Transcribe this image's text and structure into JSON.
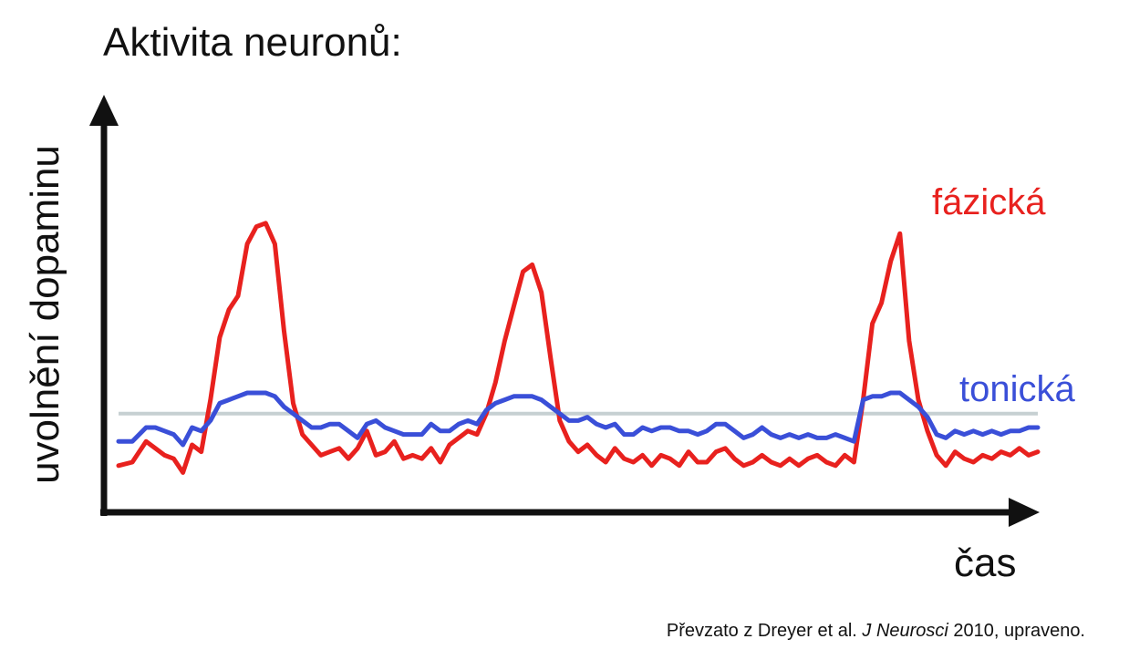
{
  "chart_data": {
    "type": "line",
    "title": "Aktivita neuronů:",
    "xlabel": "čas",
    "ylabel": "uvolnění dopaminu",
    "xlim": [
      0,
      100
    ],
    "ylim": [
      0,
      100
    ],
    "grid": false,
    "legend": "inline-right",
    "reference_line": {
      "y": 24,
      "color": "#c6d0d2"
    },
    "series": [
      {
        "name": "fázická",
        "color": "#e8211e",
        "x": [
          0,
          1.5,
          3,
          4,
          5,
          6,
          7,
          8,
          9,
          10,
          11,
          12,
          13,
          14,
          15,
          16,
          17,
          18,
          19,
          20,
          21,
          22,
          23,
          24,
          25,
          26,
          27,
          28,
          29,
          30,
          31,
          32,
          33,
          34,
          35,
          36,
          37,
          38,
          39,
          40,
          41,
          42,
          43,
          44,
          45,
          46,
          47,
          48,
          49,
          50,
          51,
          52,
          53,
          54,
          55,
          56,
          57,
          58,
          59,
          60,
          61,
          62,
          63,
          64,
          65,
          66,
          67,
          68,
          69,
          70,
          71,
          72,
          73,
          74,
          75,
          76,
          77,
          78,
          79,
          80,
          81,
          82,
          83,
          84,
          85,
          86,
          87,
          88,
          89,
          90,
          91,
          92,
          93,
          94,
          95,
          96,
          97,
          98,
          99,
          100
        ],
        "y": [
          9,
          10,
          16,
          14,
          12,
          11,
          7,
          15,
          13,
          28,
          46,
          54,
          58,
          73,
          78,
          79,
          73,
          48,
          27,
          18,
          15,
          12,
          13,
          14,
          11,
          14,
          19,
          12,
          13,
          16,
          11,
          12,
          11,
          14,
          10,
          15,
          17,
          19,
          18,
          24,
          33,
          45,
          55,
          65,
          67,
          59,
          40,
          22,
          16,
          13,
          15,
          12,
          10,
          14,
          11,
          10,
          12,
          9,
          12,
          11,
          9,
          13,
          10,
          10,
          13,
          14,
          11,
          9,
          10,
          12,
          10,
          9,
          11,
          9,
          11,
          12,
          10,
          9,
          12,
          10,
          28,
          50,
          56,
          68,
          76,
          45,
          28,
          19,
          12,
          9,
          13,
          11,
          10,
          12,
          11,
          13,
          12,
          14,
          12,
          13
        ]
      },
      {
        "name": "tonická",
        "color": "#3a4fd8",
        "x": [
          0,
          1.5,
          3,
          4,
          5,
          6,
          7,
          8,
          9,
          10,
          11,
          12,
          13,
          14,
          15,
          16,
          17,
          18,
          19,
          20,
          21,
          22,
          23,
          24,
          25,
          26,
          27,
          28,
          29,
          30,
          31,
          32,
          33,
          34,
          35,
          36,
          37,
          38,
          39,
          40,
          41,
          42,
          43,
          44,
          45,
          46,
          47,
          48,
          49,
          50,
          51,
          52,
          53,
          54,
          55,
          56,
          57,
          58,
          59,
          60,
          61,
          62,
          63,
          64,
          65,
          66,
          67,
          68,
          69,
          70,
          71,
          72,
          73,
          74,
          75,
          76,
          77,
          78,
          79,
          80,
          81,
          82,
          83,
          84,
          85,
          86,
          87,
          88,
          89,
          90,
          91,
          92,
          93,
          94,
          95,
          96,
          97,
          98,
          99,
          100
        ],
        "y": [
          16,
          16,
          20,
          20,
          19,
          18,
          15,
          20,
          19,
          22,
          27,
          28,
          29,
          30,
          30,
          30,
          29,
          26,
          24,
          22,
          20,
          20,
          21,
          21,
          19,
          17,
          21,
          22,
          20,
          19,
          18,
          18,
          18,
          21,
          19,
          19,
          21,
          22,
          21,
          25,
          27,
          28,
          29,
          29,
          29,
          28,
          26,
          24,
          22,
          22,
          23,
          21,
          20,
          21,
          18,
          18,
          20,
          19,
          20,
          20,
          19,
          19,
          18,
          19,
          21,
          21,
          19,
          17,
          18,
          20,
          18,
          17,
          18,
          17,
          18,
          17,
          17,
          18,
          17,
          16,
          28,
          29,
          29,
          30,
          30,
          28,
          26,
          23,
          18,
          17,
          19,
          18,
          19,
          18,
          19,
          18,
          19,
          19,
          20,
          20
        ]
      }
    ]
  },
  "source": {
    "prefix": "Převzato z Dreyer et al. ",
    "journal": "J Neurosci",
    "suffix": " 2010, upraveno."
  }
}
